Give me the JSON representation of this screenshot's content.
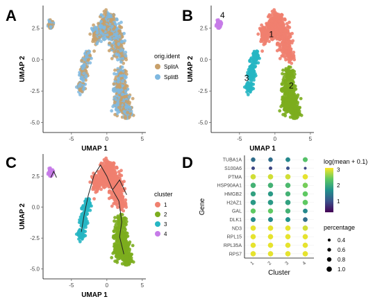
{
  "figure": {
    "panels": [
      {
        "label": "A"
      },
      {
        "label": "B"
      },
      {
        "label": "C"
      },
      {
        "label": "D"
      }
    ]
  },
  "chart_data": [
    {
      "panel": "A",
      "type": "scatter",
      "xlabel": "UMAP 1",
      "ylabel": "UMAP 2",
      "xlim": [
        -9,
        5.5
      ],
      "ylim": [
        -5.8,
        4.3
      ],
      "xticks": [
        -5,
        0,
        5
      ],
      "yticks": [
        -5.0,
        -2.5,
        0.0,
        2.5
      ],
      "xtick_labels": [
        "-5",
        "0",
        "5"
      ],
      "ytick_labels": [
        "-5.0",
        "-2.5",
        "0.0",
        "2.5"
      ],
      "grid": false,
      "legend": {
        "title": "orig.ident",
        "position": "right",
        "entries": [
          "SplitA",
          "SplitB"
        ]
      },
      "series": [
        {
          "name": "SplitA",
          "color": "#C8A06A"
        },
        {
          "name": "SplitB",
          "color": "#7FB8E0"
        }
      ],
      "point_cloud_note_free": true
    },
    {
      "panel": "B",
      "type": "scatter",
      "xlabel": "UMAP 1",
      "ylabel": "UMAP 2",
      "xlim": [
        -9,
        5.5
      ],
      "ylim": [
        -5.8,
        4.3
      ],
      "xticks": [
        -5,
        0,
        5
      ],
      "yticks": [
        -5.0,
        -2.5,
        0.0,
        2.5
      ],
      "xtick_labels": [
        "-5",
        "0",
        "5"
      ],
      "ytick_labels": [
        "-5.0",
        "-2.5",
        "0.0",
        "2.5"
      ],
      "grid": false,
      "cluster_labels": [
        {
          "text": "1",
          "x": -0.5,
          "y": 1.8
        },
        {
          "text": "2",
          "x": 2.3,
          "y": -2.3
        },
        {
          "text": "3",
          "x": -4.0,
          "y": -1.7
        },
        {
          "text": "4",
          "x": -7.4,
          "y": 3.3
        }
      ],
      "clusters": [
        {
          "id": "1",
          "color": "#F0806F",
          "center": [
            0.3,
            2.1
          ]
        },
        {
          "id": "2",
          "color": "#7CAD1E",
          "center": [
            2.0,
            -2.6
          ]
        },
        {
          "id": "3",
          "color": "#26B6C3",
          "center": [
            -3.3,
            -1.2
          ]
        },
        {
          "id": "4",
          "color": "#C67BE8",
          "center": [
            -7.9,
            2.8
          ]
        }
      ]
    },
    {
      "panel": "C",
      "type": "scatter",
      "xlabel": "UMAP 1",
      "ylabel": "UMAP 2",
      "xlim": [
        -9,
        5.5
      ],
      "ylim": [
        -5.8,
        4.3
      ],
      "xticks": [
        -5,
        0,
        5
      ],
      "yticks": [
        -5.0,
        -2.5,
        0.0,
        2.5
      ],
      "xtick_labels": [
        "-5",
        "0",
        "5"
      ],
      "ytick_labels": [
        "-5.0",
        "-2.5",
        "0.0",
        "2.5"
      ],
      "grid": false,
      "legend": {
        "title": "cluster",
        "position": "right",
        "entries": [
          "1",
          "2",
          "3",
          "4"
        ]
      },
      "series": [
        {
          "name": "1",
          "color": "#F0806F"
        },
        {
          "name": "2",
          "color": "#7CAD1E"
        },
        {
          "name": "3",
          "color": "#26B6C3"
        },
        {
          "name": "4",
          "color": "#C67BE8"
        }
      ],
      "trajectories": [
        [
          [
            -7.9,
            2.4
          ],
          [
            -7.5,
            2.9
          ],
          [
            -7.1,
            2.4
          ]
        ],
        [
          [
            -1.8,
            2.6
          ],
          [
            -0.9,
            3.4
          ],
          [
            0.0,
            2.5
          ],
          [
            0.8,
            1.4
          ],
          [
            1.7,
            0.5
          ]
        ],
        [
          [
            1.7,
            0.5
          ],
          [
            2.1,
            -1.2
          ],
          [
            1.8,
            -2.4
          ],
          [
            2.4,
            -3.8
          ]
        ],
        [
          [
            -1.8,
            2.6
          ],
          [
            -2.6,
            1.0
          ],
          [
            -3.2,
            -0.6
          ],
          [
            -3.6,
            -2.0
          ]
        ],
        [
          [
            0.8,
            1.4
          ],
          [
            1.8,
            2.2
          ],
          [
            2.8,
            1.0
          ]
        ]
      ]
    },
    {
      "panel": "D",
      "type": "dot",
      "xlabel": "Cluster",
      "ylabel": "Gene",
      "categories": [
        "1",
        "2",
        "3",
        "4"
      ],
      "genes": [
        "TUBA1A",
        "S100A6",
        "PTMA",
        "HSP90AA1",
        "HMGB2",
        "H2AZ1",
        "GAL",
        "DLK1",
        "ND3",
        "RPL15",
        "RPL35A",
        "RPS7"
      ],
      "legend_color": {
        "title": "log(mean + 0.1)",
        "ticks": [
          1,
          2,
          3
        ],
        "tick_labels": [
          "1",
          "2",
          "3"
        ],
        "range": [
          0.3,
          3.1
        ],
        "position": "right"
      },
      "legend_size": {
        "title": "percentage",
        "ticks": [
          0.4,
          0.6,
          0.8,
          1.0
        ],
        "tick_labels": [
          "0.4",
          "0.6",
          "0.8",
          "1.0"
        ],
        "position": "right"
      },
      "values": [
        {
          "gene": "TUBA1A",
          "color": [
            1.3,
            1.3,
            1.6,
            2.3
          ],
          "size": [
            0.8,
            0.8,
            0.85,
            0.9
          ]
        },
        {
          "gene": "S100A6",
          "color": [
            0.9,
            0.9,
            1.0,
            0.9
          ],
          "size": [
            0.55,
            0.55,
            0.55,
            0.35
          ]
        },
        {
          "gene": "PTMA",
          "color": [
            2.9,
            2.9,
            2.9,
            3.0
          ],
          "size": [
            1.0,
            1.0,
            1.0,
            1.0
          ]
        },
        {
          "gene": "HSP90AA1",
          "color": [
            2.1,
            2.1,
            2.2,
            2.5
          ],
          "size": [
            1.0,
            1.0,
            1.0,
            1.0
          ]
        },
        {
          "gene": "HMGB2",
          "color": [
            1.9,
            1.8,
            2.1,
            2.4
          ],
          "size": [
            0.95,
            0.95,
            0.95,
            1.0
          ]
        },
        {
          "gene": "H2AZ1",
          "color": [
            1.8,
            1.8,
            1.9,
            2.4
          ],
          "size": [
            1.0,
            1.0,
            1.0,
            1.0
          ]
        },
        {
          "gene": "GAL",
          "color": [
            2.4,
            2.4,
            2.1,
            1.6
          ],
          "size": [
            0.95,
            0.95,
            0.95,
            0.85
          ]
        },
        {
          "gene": "DLK1",
          "color": [
            1.6,
            1.6,
            1.7,
            1.3
          ],
          "size": [
            0.9,
            0.9,
            0.9,
            0.85
          ]
        },
        {
          "gene": "ND3",
          "color": [
            3.0,
            3.0,
            3.0,
            2.9
          ],
          "size": [
            1.0,
            1.0,
            1.0,
            1.0
          ]
        },
        {
          "gene": "RPL15",
          "color": [
            3.0,
            3.0,
            3.0,
            3.0
          ],
          "size": [
            1.0,
            1.0,
            1.0,
            1.0
          ]
        },
        {
          "gene": "RPL35A",
          "color": [
            3.0,
            3.0,
            3.0,
            3.0
          ],
          "size": [
            1.0,
            1.0,
            1.0,
            1.0
          ]
        },
        {
          "gene": "RPS7",
          "color": [
            3.0,
            3.0,
            3.0,
            3.0
          ],
          "size": [
            1.0,
            1.0,
            1.0,
            1.0
          ]
        }
      ],
      "colors": {
        "viridis": [
          "#440154",
          "#3b528b",
          "#21918c",
          "#5ec962",
          "#fde725"
        ]
      }
    }
  ]
}
